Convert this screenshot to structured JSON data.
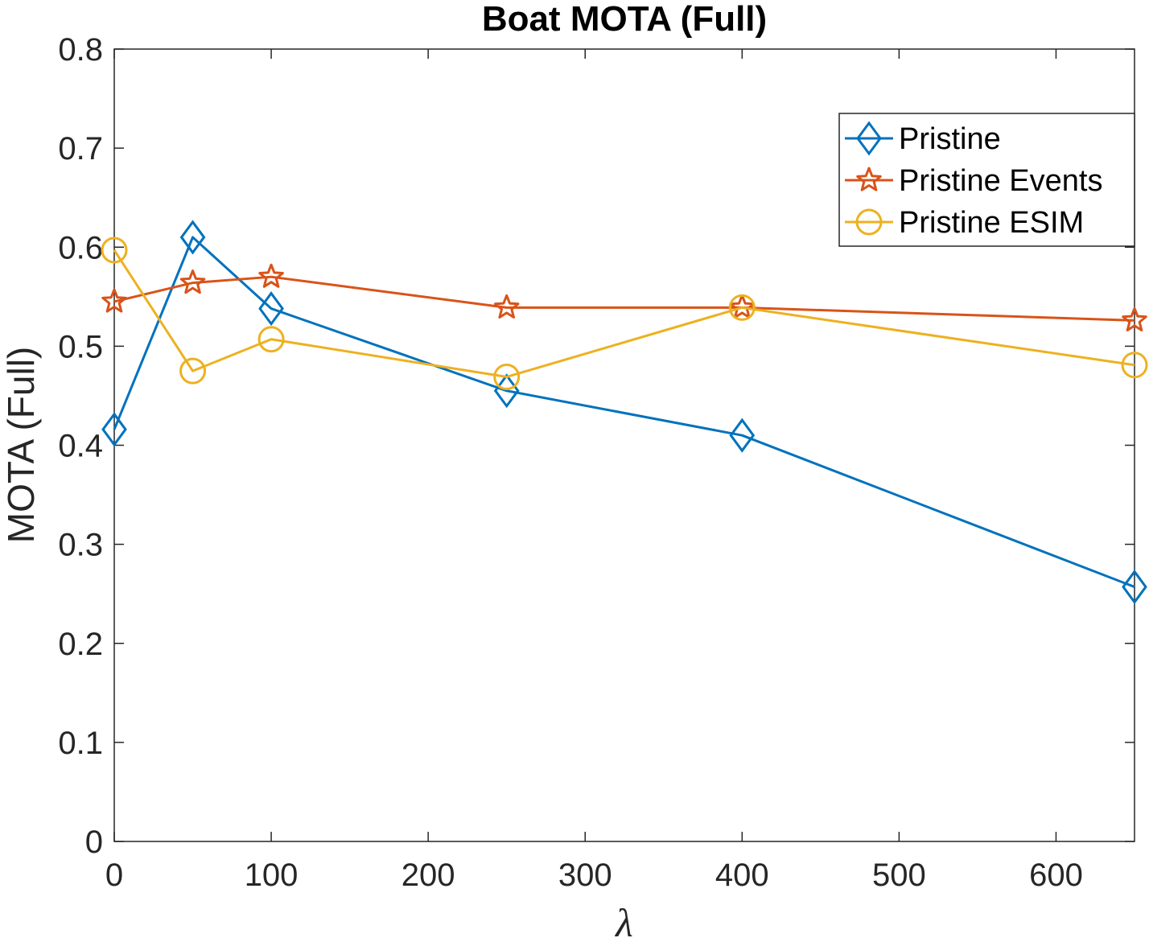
{
  "chart_data": {
    "type": "line",
    "title": "Boat MOTA (Full)",
    "xlabel": "λ",
    "ylabel": "MOTA (Full)",
    "xlim": [
      0,
      650
    ],
    "ylim": [
      0,
      0.8
    ],
    "xticks": [
      0,
      100,
      200,
      300,
      400,
      500,
      600
    ],
    "xtick_labels": [
      "0",
      "100",
      "200",
      "300",
      "400",
      "500",
      "600"
    ],
    "yticks": [
      0,
      0.1,
      0.2,
      0.3,
      0.4,
      0.5,
      0.6,
      0.7,
      0.8
    ],
    "ytick_labels": [
      "0",
      "0.1",
      "0.2",
      "0.3",
      "0.4",
      "0.5",
      "0.6",
      "0.7",
      "0.8"
    ],
    "grid": false,
    "legend_position": "top-right",
    "x": [
      0,
      50,
      100,
      250,
      400,
      650
    ],
    "series": [
      {
        "name": "Pristine",
        "marker": "diamond",
        "color": "#0072BD",
        "values": [
          0.416,
          0.61,
          0.538,
          0.455,
          0.41,
          0.257
        ]
      },
      {
        "name": "Pristine Events",
        "marker": "star",
        "color": "#D95319",
        "values": [
          0.545,
          0.564,
          0.57,
          0.539,
          0.539,
          0.526
        ]
      },
      {
        "name": "Pristine ESIM",
        "marker": "circle",
        "color": "#EDB120",
        "values": [
          0.597,
          0.475,
          0.507,
          0.469,
          0.539,
          0.481
        ]
      }
    ]
  }
}
